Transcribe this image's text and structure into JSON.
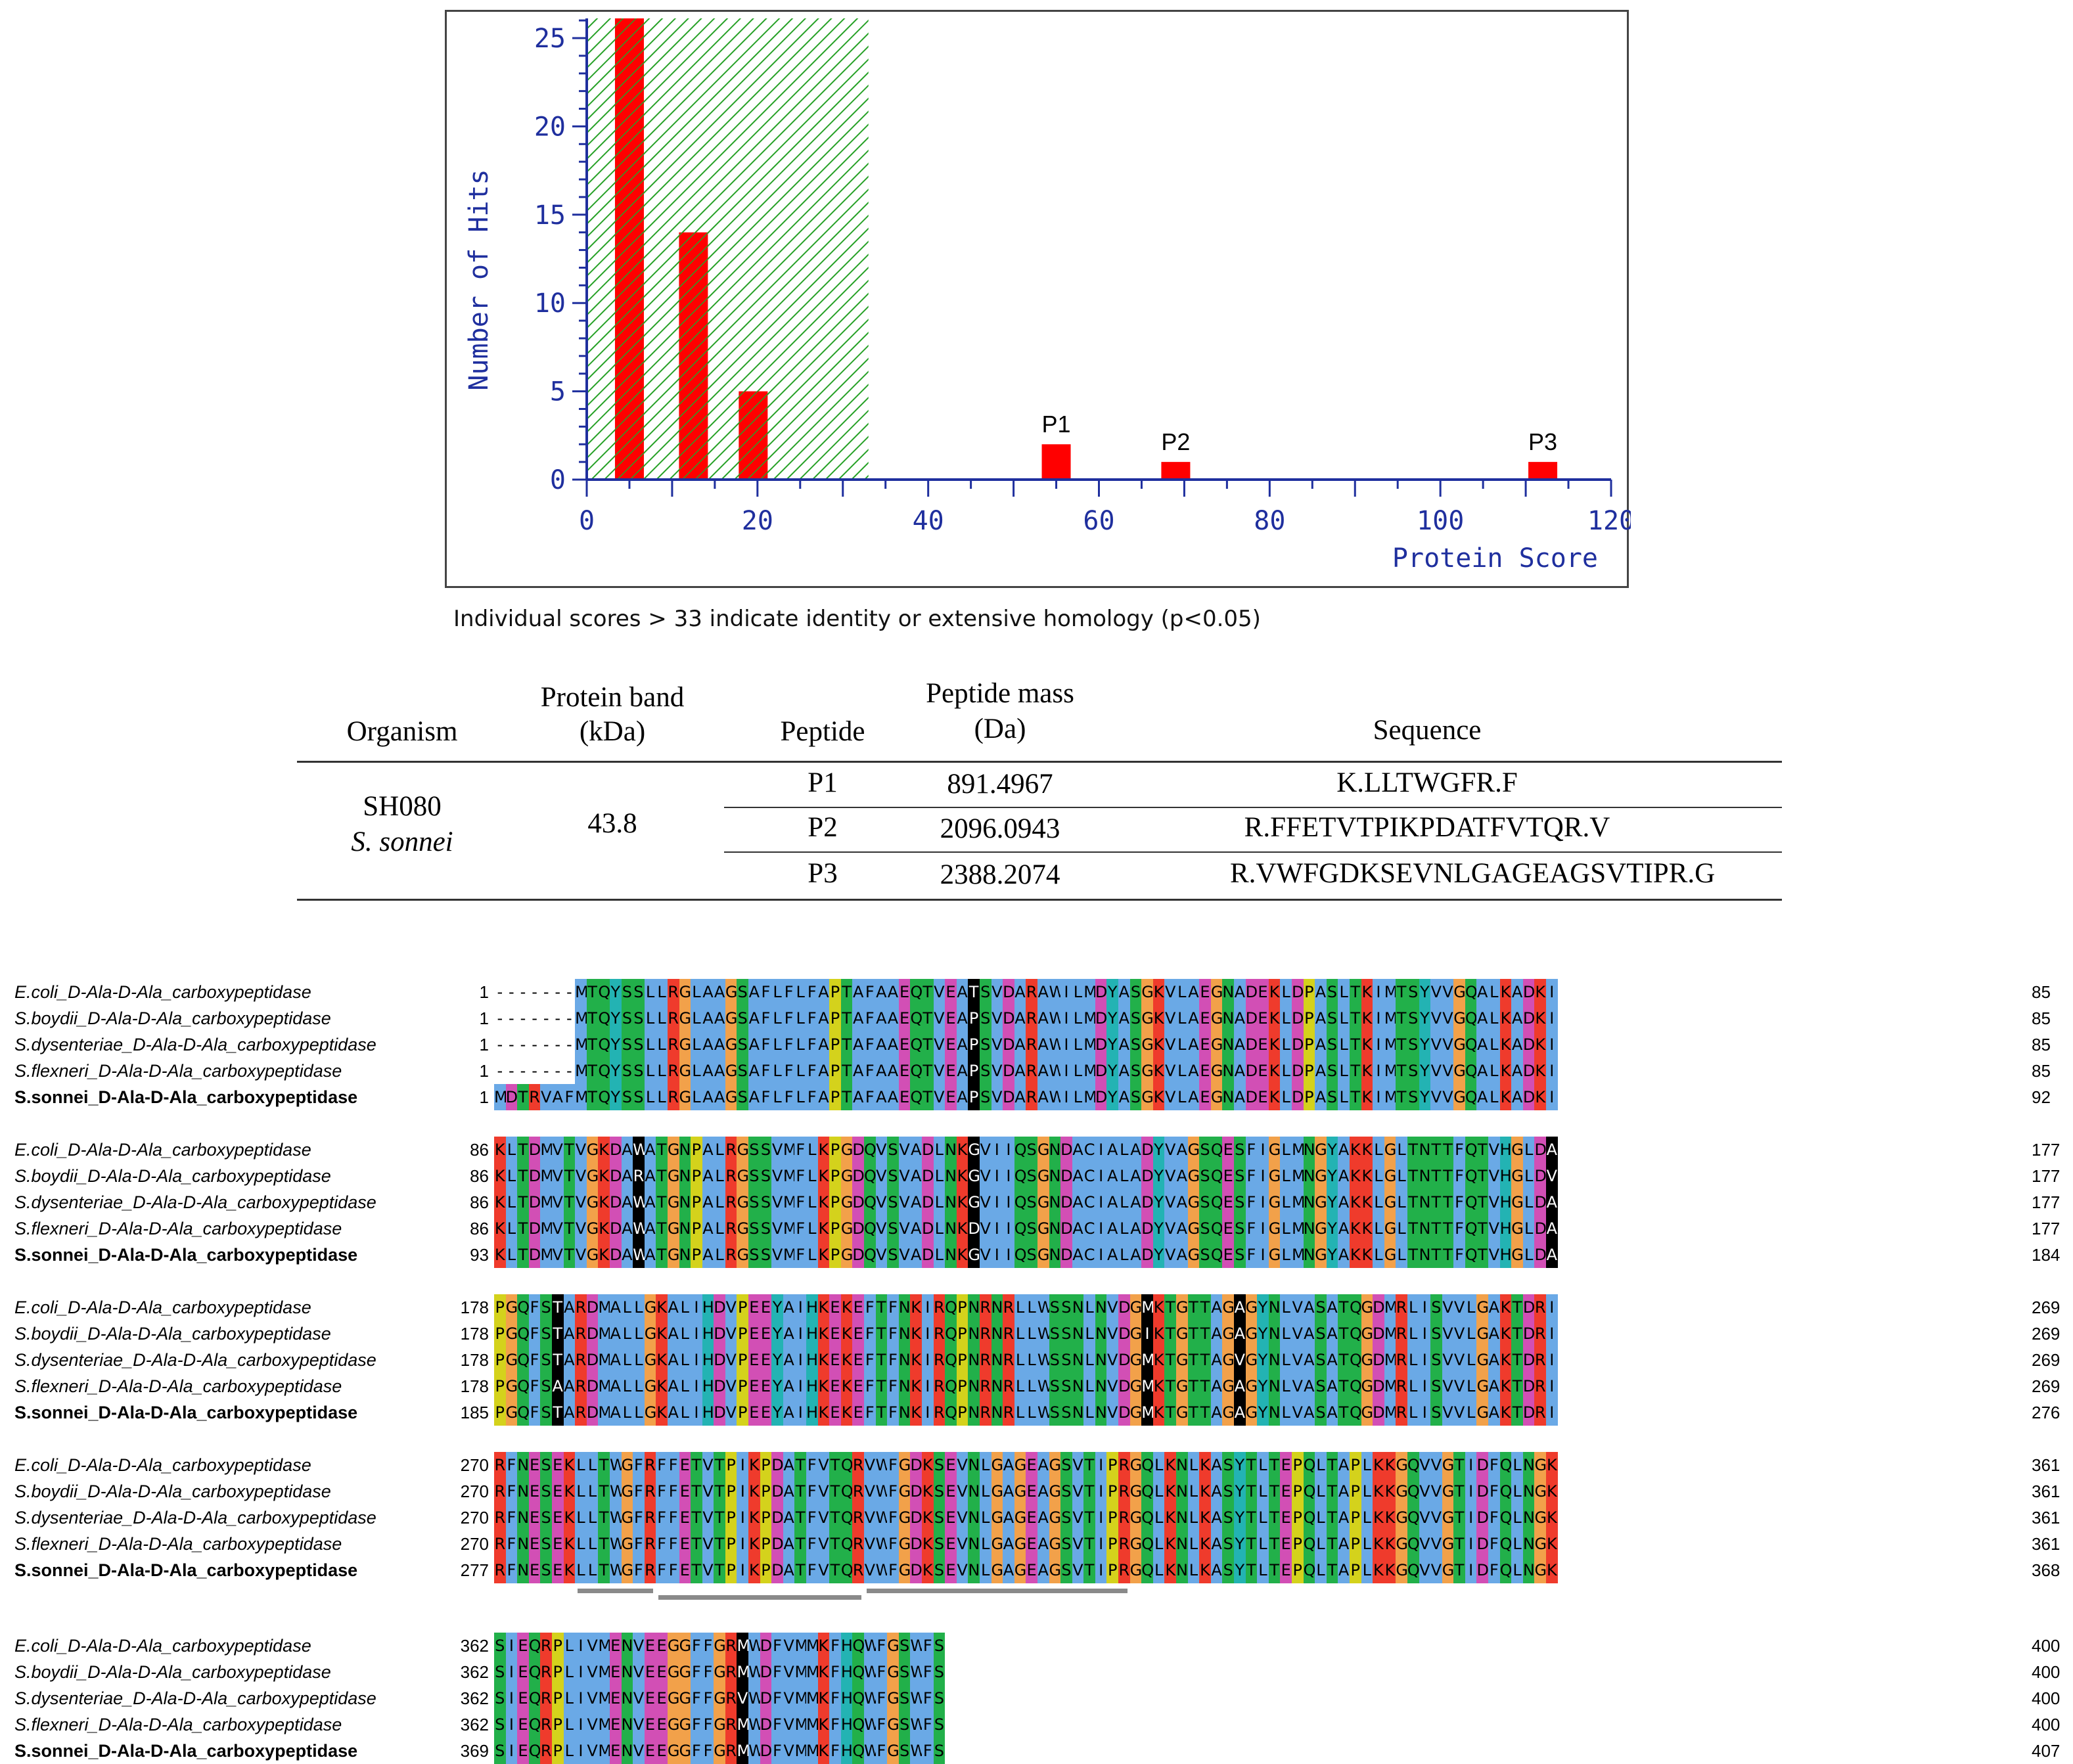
{
  "chart_data": {
    "type": "bar",
    "title": "",
    "xlabel": "Protein Score",
    "ylabel": "Number of Hits",
    "xlim": [
      0,
      120
    ],
    "ylim": [
      0,
      27
    ],
    "xticks": [
      0,
      20,
      40,
      60,
      80,
      100,
      120
    ],
    "yticks": [
      0,
      5,
      10,
      15,
      20,
      25
    ],
    "threshold_score": 33,
    "bars": [
      {
        "x": 5,
        "value": 27,
        "label": ""
      },
      {
        "x": 12.5,
        "value": 14,
        "label": ""
      },
      {
        "x": 19.5,
        "value": 5,
        "label": ""
      },
      {
        "x": 55,
        "value": 2,
        "label": "P1"
      },
      {
        "x": 69,
        "value": 1,
        "label": "P2"
      },
      {
        "x": 112,
        "value": 1,
        "label": "P3"
      }
    ],
    "colors": {
      "bar": "#ff0000",
      "hatch": "#27a127",
      "axis": "#1f2f9e",
      "label": "#1f2f9e"
    }
  },
  "caption": "Individual scores > 33 indicate identity or extensive homology (p<0.05)",
  "table": {
    "headers": {
      "organism": "Organism",
      "band_1": "Protein band",
      "band_2": "(kDa)",
      "peptide": "Peptide",
      "mass_1": "Peptide mass",
      "mass_2": "(Da)",
      "sequence": "Sequence"
    },
    "organism_1": "SH080",
    "organism_2": "S. sonnei",
    "band": "43.8",
    "rows": [
      {
        "peptide": "P1",
        "mass": "891.4967",
        "sequence": "K.LLTWGFR.F"
      },
      {
        "peptide": "P2",
        "mass": "2096.0943",
        "sequence": "R.FFETVTPIKPDATFVTQR.V"
      },
      {
        "peptide": "P3",
        "mass": "2388.2074",
        "sequence": "R.VWFGDKSEVNLGAGEAGSVTIPR.G"
      }
    ]
  },
  "alignment": {
    "names": [
      "E.coli_D-Ala-D-Ala_carboxypeptidase",
      "S.boydii_D-Ala-D-Ala_carboxypeptidase",
      "S.dysenteriae_D-Ala-D-Ala_carboxypeptidase",
      "S.flexneri_D-Ala-D-Ala_carboxypeptidase",
      "S.sonnei_D-Ala-D-Ala_carboxypeptidase"
    ],
    "blocks": [
      {
        "starts": [
          "1",
          "1",
          "1",
          "1",
          "1"
        ],
        "ends": [
          "85",
          "85",
          "85",
          "85",
          "92"
        ],
        "seqs": [
          "-------MTQYSSLLRGLAAGSAFLFLFAPTAFAAEQTVEATSVDARAWILMDYASGKVLAEGNADEKLDPASLTKIMTSYVVGQALKADKI",
          "-------MTQYSSLLRGLAAGSAFLFLFAPTAFAAEQTVEAPSVDARAWILMDYASGKVLAEGNADEKLDPASLTKIMTSYVVGQALKADKI",
          "-------MTQYSSLLRGLAAGSAFLFLFAPTAFAAEQTVEAPSVDARAWILMDYASGKVLAEGNADEKLDPASLTKIMTSYVVGQALKADKI",
          "-------MTQYSSLLRGLAAGSAFLFLFAPTAFAAEQTVEAPSVDARAWILMDYASGKVLAEGNADEKLDPASLTKIMTSYVVGQALKADKI",
          "MDTRVAFMTQYSSLLRGLAAGSAFLFLFAPTAFAAEQTVEAPSVDARAWILMDYASGKVLAEGNADEKLDPASLTKIMTSYVVGQALKADKI"
        ]
      },
      {
        "starts": [
          "86",
          "86",
          "86",
          "86",
          "93"
        ],
        "ends": [
          "177",
          "177",
          "177",
          "177",
          "184"
        ],
        "seqs": [
          "KLTDMVTVGKDAWATGNPALRGSSVMFLKPGDQVSVADLNKGVIIQSGNDACIALADYVAGSQESFIGLMNGYAKKLGLTNTTFQTVHGLDA",
          "KLTDMVTVGKDARATGNPALRGSSVMFLKPGDQVSVADLNKGVIIQSGNDACIALADYVAGSQESFIGLMNGYAKKLGLTNTTFQTVHGLDV",
          "KLTDMVTVGKDAWATGNPALRGSSVMFLKPGDQVSVADLNKGVIIQSGNDACIALADYVAGSQESFIGLMNGYAKKLGLTNTTFQTVHGLDA",
          "KLTDMVTVGKDAWATGNPALRGSSVMFLKPGDQVSVADLNKDVIIQSGNDACIALADYVAGSQESFIGLMNGYAKKLGLTNTTFQTVHGLDA",
          "KLTDMVTVGKDAWATGNPALRGSSVMFLKPGDQVSVADLNKGVIIQSGNDACIALADYVAGSQESFIGLMNGYAKKLGLTNTTFQTVHGLDA"
        ]
      },
      {
        "starts": [
          "178",
          "178",
          "178",
          "178",
          "185"
        ],
        "ends": [
          "269",
          "269",
          "269",
          "269",
          "276"
        ],
        "seqs": [
          "PGQFSTARDMALLGKALIHDVPEEYAIHKEKEFTFNKIRQPNRNRLLWSSNLNVDGMKTGTTAGAGYNLVASATQGDMRLISVVLGAKTDRI",
          "PGQFSTARDMALLGKALIHDVPEEYAIHKEKEFTFNKIRQPNRNRLLWSSNLNVDGIKTGTTAGAGYNLVASATQGDMRLISVVLGAKTDRI",
          "PGQFSTARDMALLGKALIHDVPEEYAIHKEKEFTFNKIRQPNRNRLLWSSNLNVDGMKTGTTAGVGYNLVASATQGDMRLISVVLGAKTDRI",
          "PGQFSAARDMALLGKALIHDVPEEYAIHKEKEFTFNKIRQPNRNRLLWSSNLNVDGMKTGTTAGAGYNLVASATQGDMRLISVVLGAKTDRI",
          "PGQFSTARDMALLGKALIHDVPEEYAIHKEKEFTFNKIRQPNRNRLLWSSNLNVDGMKTGTTAGAGYNLVASATQGDMRLISVVLGAKTDRI"
        ]
      },
      {
        "starts": [
          "270",
          "270",
          "270",
          "270",
          "277"
        ],
        "ends": [
          "361",
          "361",
          "361",
          "361",
          "368"
        ],
        "seqs": [
          "RFNESEKLLTWGFRFFETVTPIKPDATFVTQRVWFGDKSEVNLGAGEAGSVTIPRGQLKNLKASYTLTEPQLTAPLKKGQVVGTIDFQLNGK",
          "RFNESEKLLTWGFRFFETVTPIKPDATFVTQRVWFGDKSEVNLGAGEAGSVTIPRGQLKNLKASYTLTEPQLTAPLKKGQVVGTIDFQLNGK",
          "RFNESEKLLTWGFRFFETVTPIKPDATFVTQRVWFGDKSEVNLGAGEAGSVTIPRGQLKNLKASYTLTEPQLTAPLKKGQVVGTIDFQLNGK",
          "RFNESEKLLTWGFRFFETVTPIKPDATFVTQRVWFGDKSEVNLGAGEAGSVTIPRGQLKNLKASYTLTEPQLTAPLKKGQVVGTIDFQLNGK",
          "RFNESEKLLTWGFRFFETVTPIKPDATFVTQRVWFGDKSEVNLGAGEAGSVTIPRGQLKNLKASYTLTEPQLTAPLKKGQVVGTIDFQLNGK"
        ]
      },
      {
        "starts": [
          "362",
          "362",
          "362",
          "362",
          "369"
        ],
        "ends": [
          "400",
          "400",
          "400",
          "400",
          "407"
        ],
        "seqs": [
          "SIEQRPLIVMENVEEGGFFGRMWDFVMMKFHQWFGSWFS",
          "SIEQRPLIVMENVEEGGFFGRMWDFVMMKFHQWFGSWFS",
          "SIEQRPLIVMENVEEGGFFGRVWDFVMMKFHQWFGSWFS",
          "SIEQRPLIVMENVEEGGFFGRMWDFVMMKFHQWFGSWFS",
          "SIEQRPLIVMENVEEGGFFGRMWDFVMMKFHQWFGSWFS"
        ]
      }
    ],
    "highlight_colors": {
      "hydrophobic": "#6aa9e6",
      "positive": "#ef3b2c",
      "negative": "#d24fb5",
      "polar": "#22b04a",
      "glycine": "#f2a14a",
      "proline": "#d4d21c",
      "aromatic": "#23b3b3",
      "variant": "#000000"
    }
  }
}
